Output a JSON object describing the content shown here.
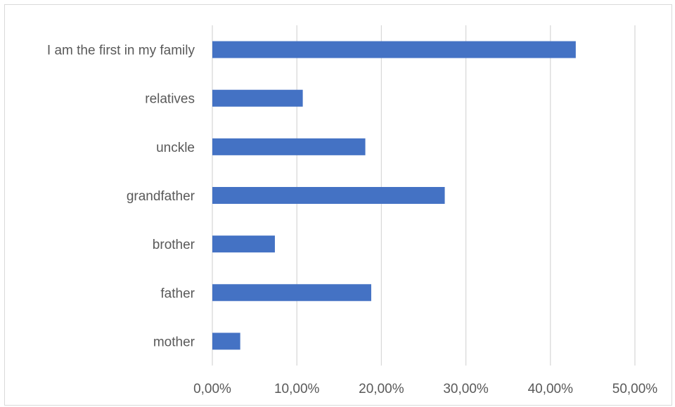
{
  "chart_data": {
    "type": "bar",
    "orientation": "horizontal",
    "categories": [
      "mother",
      "father",
      "brother",
      "grandfather",
      "unckle",
      "relatives",
      "I am the first in my family"
    ],
    "values": [
      3.3,
      18.8,
      7.4,
      27.5,
      18.1,
      10.7,
      43.0
    ],
    "xlim": [
      0,
      50
    ],
    "xticks": [
      "0,00%",
      "10,00%",
      "20,00%",
      "30,00%",
      "40,00%",
      "50,00%"
    ],
    "xtick_values": [
      0,
      10,
      20,
      30,
      40,
      50
    ],
    "grid": "vertical",
    "bar_color": "#4472C4",
    "gridline_color": "#d9d9d9"
  }
}
